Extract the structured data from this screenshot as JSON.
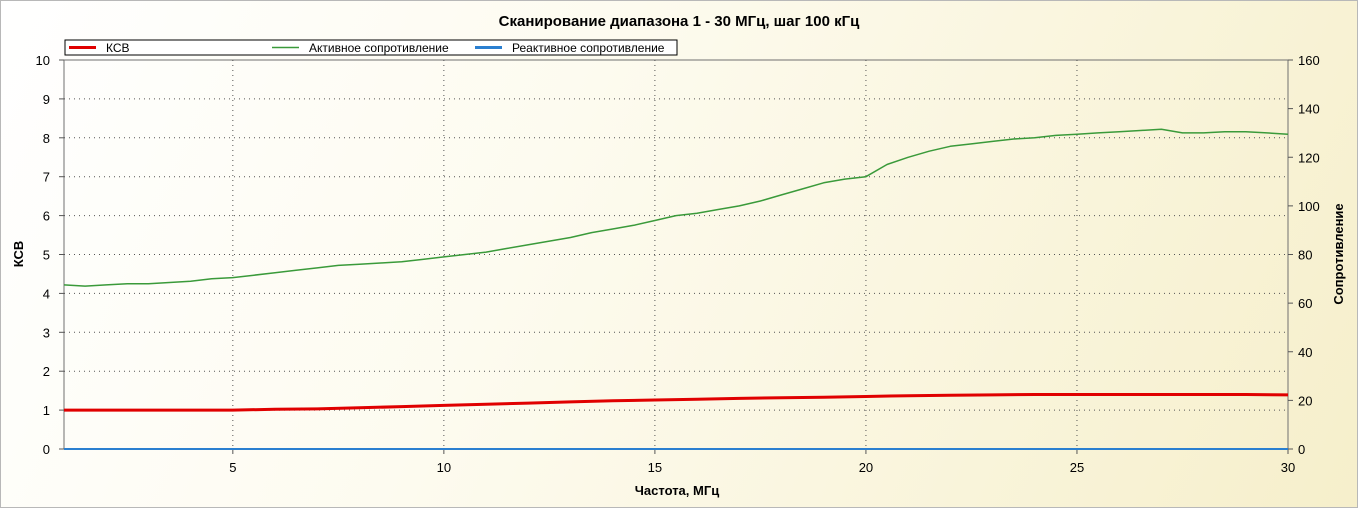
{
  "chart_data": {
    "type": "line",
    "title": "Сканирование диапазона 1 - 30 МГц, шаг 100 кГц",
    "xlabel": "Частота, МГц",
    "ylabel": "КСВ",
    "y2label": "Сопротивление",
    "xlim": [
      1,
      30
    ],
    "ylim": [
      0,
      10
    ],
    "y2lim": [
      0,
      160
    ],
    "x_ticks": [
      5,
      10,
      15,
      20,
      25,
      30
    ],
    "y_ticks": [
      0,
      1,
      2,
      3,
      4,
      5,
      6,
      7,
      8,
      9,
      10
    ],
    "y2_ticks": [
      0,
      20,
      40,
      60,
      80,
      100,
      120,
      140,
      160
    ],
    "grid": true,
    "legend_position": "top-left",
    "series": [
      {
        "name": "КСВ",
        "axis": "left",
        "color": "#e00000",
        "x": [
          1,
          2,
          3,
          4,
          5,
          6,
          7,
          8,
          9,
          10,
          11,
          12,
          13,
          14,
          15,
          16,
          17,
          18,
          19,
          20,
          21,
          22,
          23,
          24,
          25,
          26,
          27,
          28,
          29,
          30
        ],
        "y": [
          1.0,
          1.0,
          1.0,
          1.0,
          1.0,
          1.02,
          1.03,
          1.06,
          1.09,
          1.12,
          1.15,
          1.18,
          1.21,
          1.24,
          1.26,
          1.28,
          1.3,
          1.32,
          1.33,
          1.35,
          1.37,
          1.38,
          1.39,
          1.4,
          1.4,
          1.4,
          1.4,
          1.4,
          1.4,
          1.39
        ]
      },
      {
        "name": "Активное сопротивление",
        "axis": "right",
        "color": "#3a9a3a",
        "x": [
          1,
          1.5,
          2,
          2.5,
          3,
          3.5,
          4,
          4.5,
          5,
          5.5,
          6,
          6.5,
          7,
          7.5,
          8,
          8.5,
          9,
          9.5,
          10,
          10.5,
          11,
          11.5,
          12,
          12.5,
          13,
          13.5,
          14,
          14.5,
          15,
          15.5,
          16,
          16.5,
          17,
          17.5,
          18,
          18.5,
          19,
          19.5,
          20,
          20.5,
          21,
          21.5,
          22,
          22.5,
          23,
          23.5,
          24,
          24.5,
          25,
          25.5,
          26,
          26.5,
          27,
          27.5,
          28,
          28.5,
          29,
          29.5,
          30
        ],
        "y": [
          67.5,
          67.0,
          67.5,
          68.0,
          68.0,
          68.5,
          69.0,
          70.0,
          70.5,
          71.5,
          72.5,
          73.5,
          74.5,
          75.5,
          76.0,
          76.5,
          77.0,
          78.0,
          79.0,
          80.0,
          81.0,
          82.5,
          84.0,
          85.5,
          87.0,
          89.0,
          90.5,
          92.0,
          94.0,
          96.0,
          97.0,
          98.5,
          100.0,
          102.0,
          104.5,
          107.0,
          109.5,
          111.0,
          112.0,
          117.0,
          120.0,
          122.5,
          124.5,
          125.5,
          126.5,
          127.5,
          128.0,
          129.0,
          129.5,
          130.0,
          130.5,
          131.0,
          131.5,
          130.0,
          130.0,
          130.5,
          130.5,
          130.0,
          129.5
        ]
      },
      {
        "name": "Реактивное сопротивление",
        "axis": "right",
        "color": "#2a7fd0",
        "x": [
          1,
          30
        ],
        "y": [
          0,
          0
        ]
      }
    ]
  }
}
